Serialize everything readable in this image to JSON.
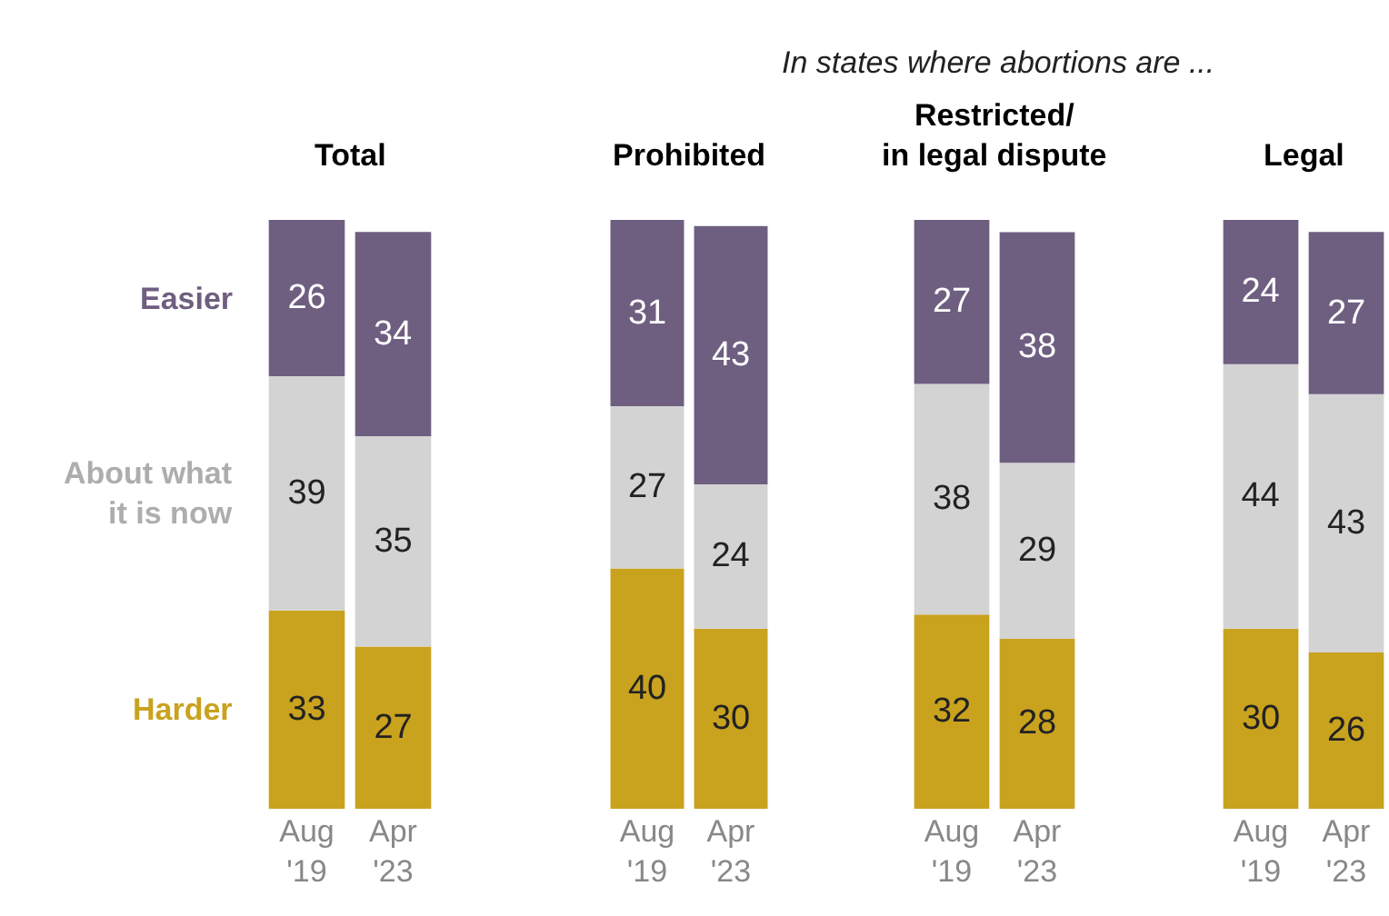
{
  "chart_data": [
    {
      "type": "bar",
      "stacked": true,
      "title": "Total",
      "categories": [
        "Aug\n'19",
        "Apr\n'23"
      ],
      "data_labels": true,
      "tick_labels": "x",
      "series": [
        {
          "name": "Harder",
          "color": "#c9a21e",
          "values": [
            33,
            27
          ]
        },
        {
          "name": "About what\nit is now",
          "color": "#d3d3d3",
          "values": [
            39,
            35
          ]
        },
        {
          "name": "Easier",
          "color": "#6e5f80",
          "values": [
            26,
            34
          ]
        }
      ]
    },
    {
      "type": "bar",
      "stacked": true,
      "title": "Prohibited",
      "categories": [
        "Aug\n'19",
        "Apr\n'23"
      ],
      "data_labels": true,
      "tick_labels": "x",
      "annotations": [
        "In states where abortions are ..."
      ],
      "series": [
        {
          "color": "#c9a21e",
          "values": [
            40,
            30
          ]
        },
        {
          "color": "#d3d3d3",
          "values": [
            27,
            24
          ]
        },
        {
          "color": "#6e5f80",
          "values": [
            31,
            43
          ]
        }
      ]
    },
    {
      "type": "bar",
      "stacked": true,
      "title": "Restricted/\nin legal dispute",
      "categories": [
        "Aug\n'19",
        "Apr\n'23"
      ],
      "data_labels": true,
      "tick_labels": "x",
      "series": [
        {
          "color": "#c9a21e",
          "values": [
            32,
            28
          ]
        },
        {
          "color": "#d3d3d3",
          "values": [
            38,
            29
          ]
        },
        {
          "color": "#6e5f80",
          "values": [
            27,
            38
          ]
        }
      ]
    },
    {
      "type": "bar",
      "stacked": true,
      "title": "Legal",
      "categories": [
        "Aug\n'19",
        "Apr\n'23"
      ],
      "data_labels": true,
      "tick_labels": "x",
      "series": [
        {
          "color": "#c9a21e",
          "values": [
            30,
            26
          ]
        },
        {
          "color": "#d3d3d3",
          "values": [
            44,
            43
          ]
        },
        {
          "color": "#6e5f80",
          "values": [
            24,
            27
          ]
        }
      ]
    }
  ]
}
